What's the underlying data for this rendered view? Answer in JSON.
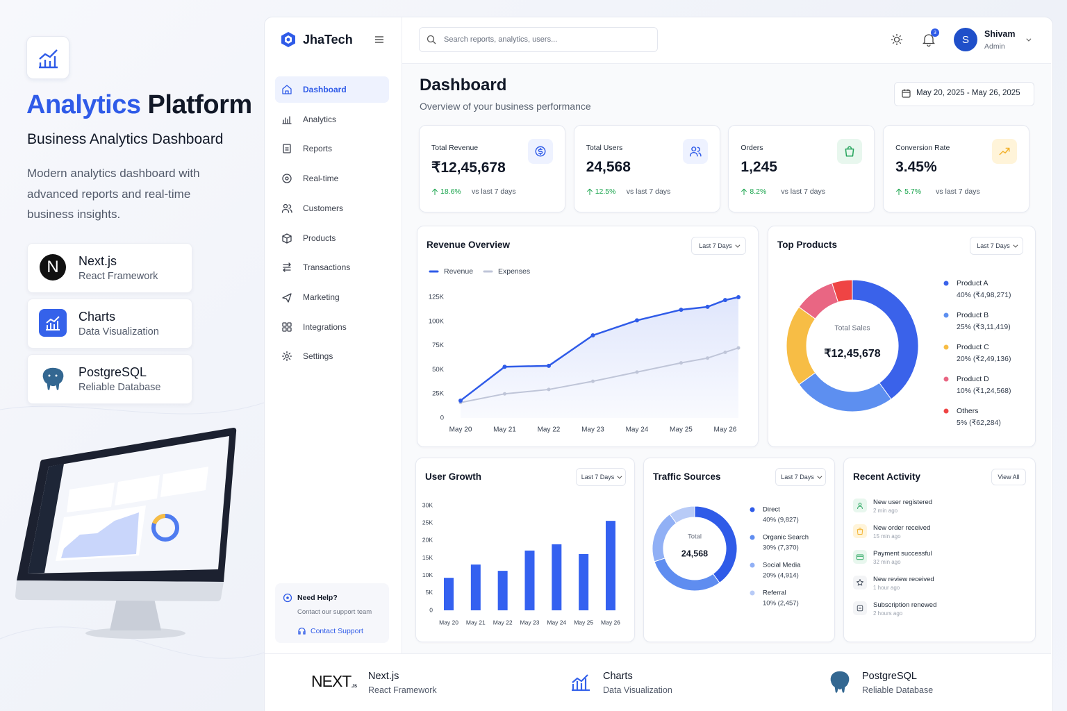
{
  "promo": {
    "title_accent": "Analytics",
    "title_rest": "Platform",
    "subtitle": "Business Analytics Dashboard",
    "description": "Modern analytics dashboard with advanced reports and real-time business insights.",
    "tech": [
      {
        "icon": "N",
        "name": "Next.js",
        "desc": "React Framework"
      },
      {
        "name": "Charts",
        "desc": "Data Visualization"
      },
      {
        "name": "PostgreSQL",
        "desc": "Reliable Database"
      }
    ]
  },
  "sidebar": {
    "brand": "JhaTech",
    "nav": [
      "Dashboard",
      "Analytics",
      "Reports",
      "Real-time",
      "Customers",
      "Products",
      "Transactions",
      "Marketing",
      "Integrations",
      "Settings"
    ],
    "help": {
      "title": "Need Help?",
      "text": "Contact our support team",
      "link": "Contact Support"
    }
  },
  "topbar": {
    "search_placeholder": "Search reports, analytics, users...",
    "notifications": "3",
    "avatar": "S",
    "user": "Shivam",
    "role": "Admin"
  },
  "header": {
    "title": "Dashboard",
    "subtitle": "Overview of your business performance",
    "date_range": "May 20, 2025 - May 26, 2025"
  },
  "kpis": [
    {
      "label": "Total Revenue",
      "value": "₹12,45,678",
      "change": "18.6%",
      "compare": "vs last 7 days"
    },
    {
      "label": "Total Users",
      "value": "24,568",
      "change": "12.5%",
      "compare": "vs last 7 days"
    },
    {
      "label": "Orders",
      "value": "1,245",
      "change": "8.2%",
      "compare": "vs last 7 days"
    },
    {
      "label": "Conversion Rate",
      "value": "3.45%",
      "change": "5.7%",
      "compare": "vs last 7 days"
    }
  ],
  "revenue_overview": {
    "type": "line",
    "title": "Revenue Overview",
    "filter": "Last 7 Days",
    "x": [
      0,
      1,
      2,
      3,
      4,
      5,
      5.6,
      6,
      6.3
    ],
    "xlim": [
      0,
      6.3
    ],
    "xticks": [
      {
        "value": 0,
        "label": "May 20"
      },
      {
        "value": 1,
        "label": "May 21"
      },
      {
        "value": 2,
        "label": "May 22"
      },
      {
        "value": 3,
        "label": "May 23"
      },
      {
        "value": 4,
        "label": "May 24"
      },
      {
        "value": 5,
        "label": "May 25"
      },
      {
        "value": 6,
        "label": "May 26"
      }
    ],
    "ylim": [
      0,
      125000
    ],
    "yticks": [
      0,
      {
        "value": 25000,
        "label": "25K"
      },
      {
        "value": 50000,
        "label": "50K"
      },
      {
        "value": 75000,
        "label": "75K"
      },
      {
        "value": 100000,
        "label": "100K"
      },
      {
        "value": 125000,
        "label": "125K"
      }
    ],
    "series": [
      {
        "name": "Revenue",
        "color": "#2f5be8",
        "values": [
          18000,
          53000,
          54000,
          85500,
          101000,
          112000,
          115000,
          122000,
          125000
        ]
      },
      {
        "name": "Expenses",
        "color": "#bfc5d8",
        "values": [
          16000,
          25000,
          29500,
          38000,
          47500,
          57000,
          62000,
          68000,
          72500
        ]
      }
    ]
  },
  "top_products": {
    "type": "donut",
    "title": "Top Products",
    "filter": "Last 7 Days",
    "center_label": "Total Sales",
    "center_value": "₹12,45,678",
    "categories": [
      "Product A",
      "Product B",
      "Product C",
      "Product D",
      "Others"
    ],
    "values": [
      40,
      25,
      20,
      10,
      5
    ],
    "value_labels": [
      "40% (₹4,98,271)",
      "25% (₹3,11,419)",
      "20% (₹2,49,136)",
      "10% (₹1,24,568)",
      "5% (₹62,284)"
    ],
    "colors": [
      "#3a62ea",
      "#5d8ff0",
      "#f7bd45",
      "#e96683",
      "#ef4444"
    ]
  },
  "user_growth": {
    "type": "bar",
    "title": "User Growth",
    "filter": "Last 7 Days",
    "categories": [
      "May 20",
      "May 21",
      "May 22",
      "May 23",
      "May 24",
      "May 25",
      "May 26"
    ],
    "values": [
      9300,
      13100,
      11300,
      17100,
      18900,
      16100,
      25600
    ],
    "color": "#3461f0",
    "ylim": [
      0,
      30000
    ],
    "yticks": [
      0,
      {
        "value": 5000,
        "label": "5K"
      },
      {
        "value": 10000,
        "label": "10K"
      },
      {
        "value": 15000,
        "label": "15K"
      },
      {
        "value": 20000,
        "label": "20K"
      },
      {
        "value": 25000,
        "label": "25K"
      },
      {
        "value": 30000,
        "label": "30K"
      }
    ]
  },
  "traffic_sources": {
    "type": "donut",
    "title": "Traffic Sources",
    "filter": "Last 7 Days",
    "center_label": "Total",
    "center_value": "24,568",
    "categories": [
      "Direct",
      "Organic Search",
      "Social Media",
      "Referral"
    ],
    "values": [
      40,
      30,
      20,
      10
    ],
    "value_labels": [
      "40% (9,827)",
      "30% (7,370)",
      "20% (4,914)",
      "10% (2,457)"
    ],
    "colors": [
      "#2f5be8",
      "#5f8df0",
      "#91b0f5",
      "#b8cbf7"
    ]
  },
  "recent_activity": {
    "title": "Recent Activity",
    "action": "View All",
    "items": [
      {
        "text": "New user registered",
        "time": "2 min ago"
      },
      {
        "text": "New order received",
        "time": "15 min ago"
      },
      {
        "text": "Payment successful",
        "time": "32 min ago"
      },
      {
        "text": "New review received",
        "time": "1 hour ago"
      },
      {
        "text": "Subscription renewed",
        "time": "2 hours ago"
      }
    ]
  },
  "footer": [
    {
      "logo": "NEXT",
      "logo_suffix": ".JS",
      "name": "Next.js",
      "desc": "React Framework"
    },
    {
      "name": "Charts",
      "desc": "Data Visualization"
    },
    {
      "name": "PostgreSQL",
      "desc": "Reliable Database"
    }
  ]
}
